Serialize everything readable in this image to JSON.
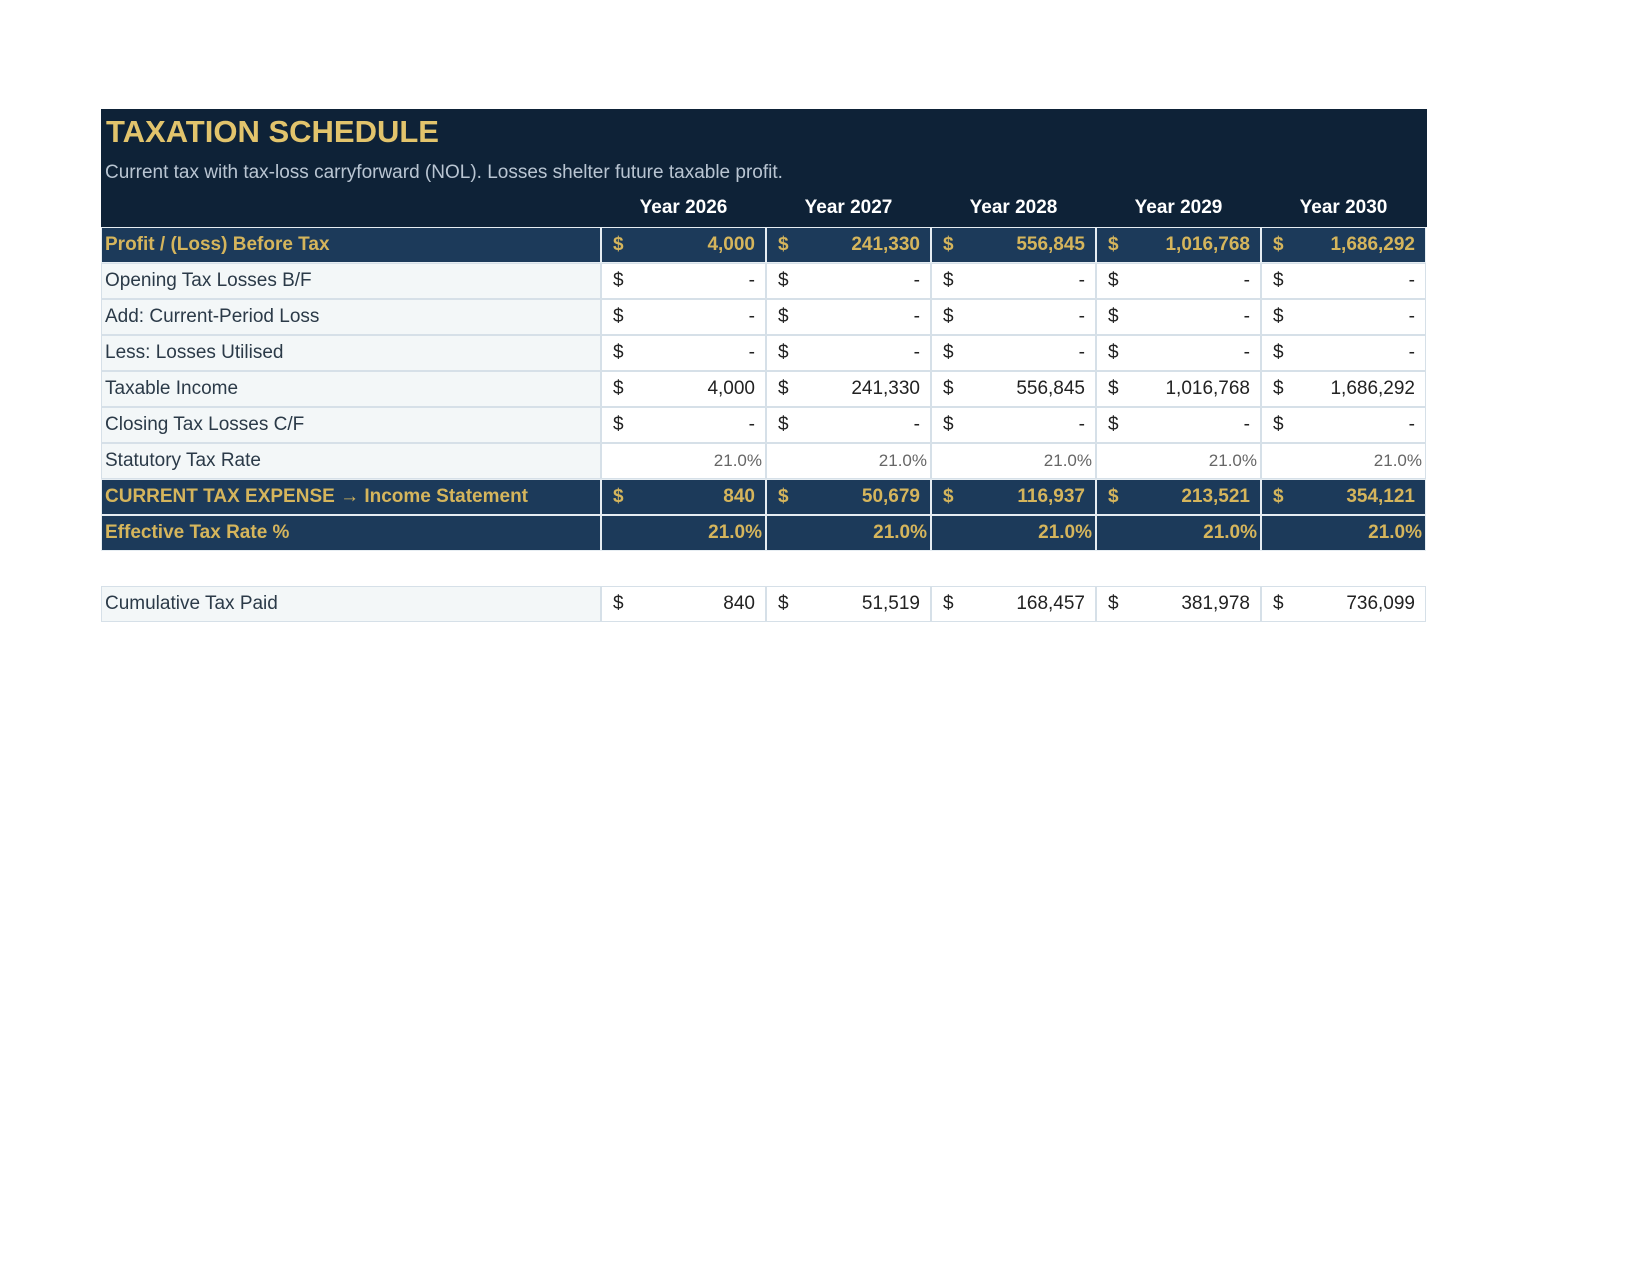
{
  "header": {
    "title": "TAXATION SCHEDULE",
    "subtitle": "Current tax with tax-loss carryforward (NOL). Losses shelter future taxable profit.",
    "columns": [
      "Year 2026",
      "Year 2027",
      "Year 2028",
      "Year 2029",
      "Year 2030"
    ]
  },
  "table": {
    "rows": [
      {
        "label": "Profit / (Loss) Before Tax",
        "cells": [
          {
            "symbol": "$",
            "amount": "4,000"
          },
          {
            "symbol": "$",
            "amount": "241,330"
          },
          {
            "symbol": "$",
            "amount": "556,845"
          },
          {
            "symbol": "$",
            "amount": "1,016,768"
          },
          {
            "symbol": "$",
            "amount": "1,686,292"
          }
        ]
      },
      {
        "label": "Opening Tax Losses B/F",
        "cells": [
          {
            "symbol": "$",
            "amount": "-"
          },
          {
            "symbol": "$",
            "amount": "-"
          },
          {
            "symbol": "$",
            "amount": "-"
          },
          {
            "symbol": "$",
            "amount": "-"
          },
          {
            "symbol": "$",
            "amount": "-"
          }
        ]
      },
      {
        "label": "Add: Current-Period Loss",
        "cells": [
          {
            "symbol": "$",
            "amount": "-"
          },
          {
            "symbol": "$",
            "amount": "-"
          },
          {
            "symbol": "$",
            "amount": "-"
          },
          {
            "symbol": "$",
            "amount": "-"
          },
          {
            "symbol": "$",
            "amount": "-"
          }
        ]
      },
      {
        "label": "Less: Losses Utilised",
        "cells": [
          {
            "symbol": "$",
            "amount": "-"
          },
          {
            "symbol": "$",
            "amount": "-"
          },
          {
            "symbol": "$",
            "amount": "-"
          },
          {
            "symbol": "$",
            "amount": "-"
          },
          {
            "symbol": "$",
            "amount": "-"
          }
        ]
      },
      {
        "label": "Taxable Income",
        "cells": [
          {
            "symbol": "$",
            "amount": "4,000"
          },
          {
            "symbol": "$",
            "amount": "241,330"
          },
          {
            "symbol": "$",
            "amount": "556,845"
          },
          {
            "symbol": "$",
            "amount": "1,016,768"
          },
          {
            "symbol": "$",
            "amount": "1,686,292"
          }
        ]
      },
      {
        "label": "Closing Tax Losses C/F",
        "cells": [
          {
            "symbol": "$",
            "amount": "-"
          },
          {
            "symbol": "$",
            "amount": "-"
          },
          {
            "symbol": "$",
            "amount": "-"
          },
          {
            "symbol": "$",
            "amount": "-"
          },
          {
            "symbol": "$",
            "amount": "-"
          }
        ]
      },
      {
        "label": "Statutory Tax Rate",
        "cells": [
          "21.0%",
          "21.0%",
          "21.0%",
          "21.0%",
          "21.0%"
        ]
      },
      {
        "label": "CURRENT TAX EXPENSE  → Income Statement",
        "cells": [
          {
            "symbol": "$",
            "amount": "840"
          },
          {
            "symbol": "$",
            "amount": "50,679"
          },
          {
            "symbol": "$",
            "amount": "116,937"
          },
          {
            "symbol": "$",
            "amount": "213,521"
          },
          {
            "symbol": "$",
            "amount": "354,121"
          }
        ]
      },
      {
        "label": "Effective Tax Rate %",
        "cells": [
          "21.0%",
          "21.0%",
          "21.0%",
          "21.0%",
          "21.0%"
        ]
      }
    ]
  },
  "summary": {
    "rows": [
      {
        "label": "Cumulative Tax Paid",
        "cells": [
          {
            "symbol": "$",
            "amount": "840"
          },
          {
            "symbol": "$",
            "amount": "51,519"
          },
          {
            "symbol": "$",
            "amount": "168,457"
          },
          {
            "symbol": "$",
            "amount": "381,978"
          },
          {
            "symbol": "$",
            "amount": "736,099"
          }
        ]
      }
    ]
  }
}
